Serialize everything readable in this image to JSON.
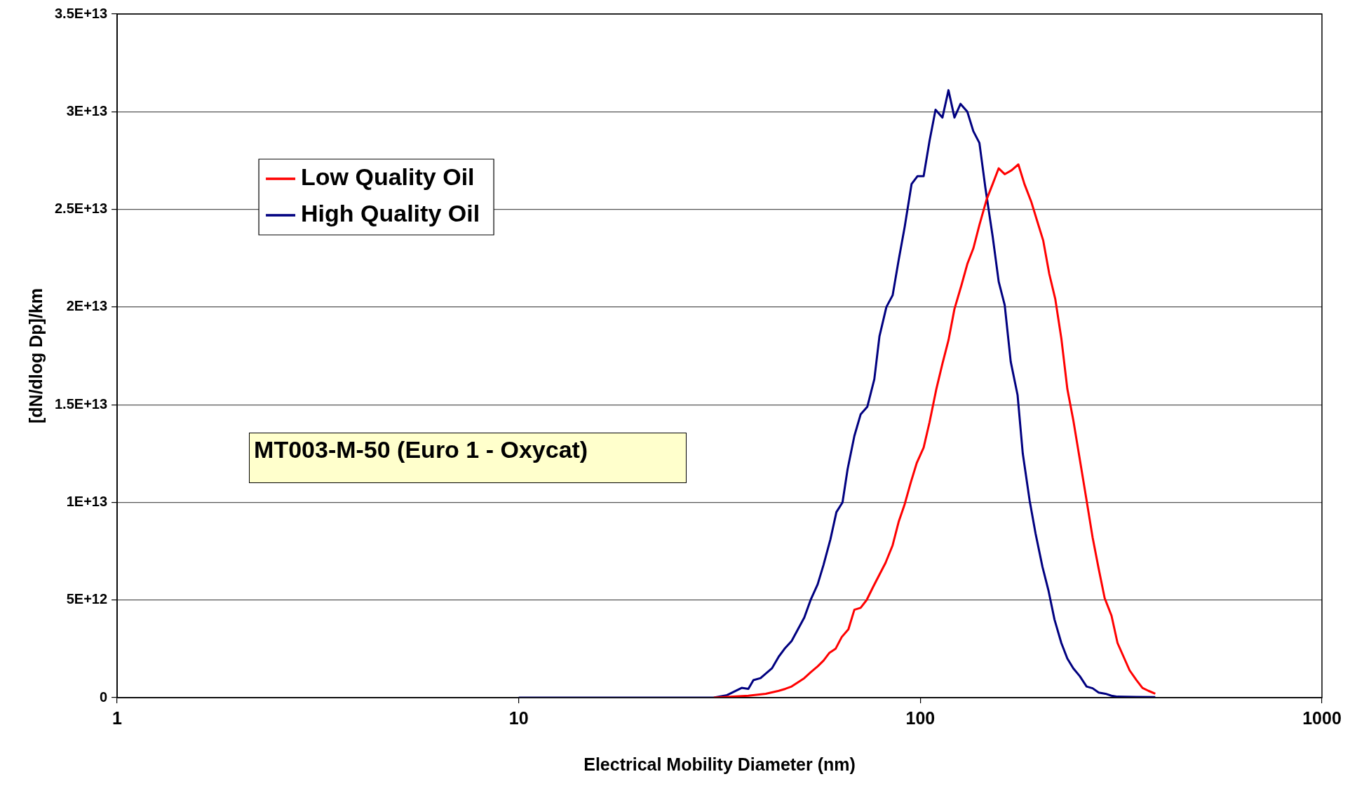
{
  "chart_data": {
    "type": "line",
    "xlabel": "Electrical Mobility Diameter (nm)",
    "ylabel": "[dN/dlog Dp]/km",
    "annotations": [
      "MT003-M-50 (Euro 1 - Oxycat)"
    ],
    "log": "x",
    "xlim": [
      1,
      1000
    ],
    "xticks": [
      1,
      10,
      100,
      1000
    ],
    "ylim": [
      0,
      35000000000000.0
    ],
    "yticks": [
      {
        "value": 0,
        "label": "0"
      },
      {
        "value": 5000000000000.0,
        "label": "5E+12"
      },
      {
        "value": 10000000000000.0,
        "label": "1E+13"
      },
      {
        "value": 15000000000000.0,
        "label": "1.5E+13"
      },
      {
        "value": 20000000000000.0,
        "label": "2E+13"
      },
      {
        "value": 25000000000000.0,
        "label": "2.5E+13"
      },
      {
        "value": 30000000000000.0,
        "label": "3E+13"
      },
      {
        "value": 35000000000000.0,
        "label": "3.5E+13"
      }
    ],
    "grid": "y",
    "legend": "top left",
    "marker": "none",
    "line_style": "solid",
    "series": [
      {
        "name": "Low Quality Oil",
        "color": "#ff0000",
        "x": [
          30.6,
          37.3,
          41.2,
          44.4,
          46.1,
          47.8,
          49.7,
          51.4,
          53.3,
          55.5,
          57.4,
          59.4,
          61.5,
          63.7,
          66.2,
          68.5,
          71.0,
          73.5,
          76.4,
          79.1,
          81.9,
          85.3,
          88.3,
          91.4,
          94.6,
          97.9,
          101.9,
          105.4,
          109.6,
          113.5,
          117.5,
          121.6,
          126.5,
          130.9,
          135.5,
          140.3,
          146.2,
          151.4,
          156.7,
          162.2,
          168.7,
          175.4,
          181.6,
          188.8,
          195.4,
          202.3,
          209.4,
          216.8,
          224.4,
          232.3,
          240.4,
          249.5,
          259.4,
          268.5,
          278.0,
          287.7,
          299.2,
          309.7,
          320.6,
          331.9,
          345.1,
          357.3,
          369.8,
          384.6
        ],
        "values": [
          0,
          100000000000.0,
          200000000000.0,
          350000000000.0,
          450000000000.0,
          570000000000.0,
          800000000000.0,
          1000000000000.0,
          1300000000000.0,
          1600000000000.0,
          1900000000000.0,
          2300000000000.0,
          2500000000000.0,
          3100000000000.0,
          3500000000000.0,
          4500000000000.0,
          4600000000000.0,
          5000000000000.0,
          5700000000000.0,
          6300000000000.0,
          6900000000000.0,
          7800000000000.0,
          9000000000000.0,
          9900000000000.0,
          11000000000000.0,
          12000000000000.0,
          12800000000000.0,
          14100000000000.0,
          15800000000000.0,
          17100000000000.0,
          18300000000000.0,
          19900000000000.0,
          21100000000000.0,
          22200000000000.0,
          23000000000000.0,
          24200000000000.0,
          25500000000000.0,
          26300000000000.0,
          27100000000000.0,
          26800000000000.0,
          27000000000000.0,
          27300000000000.0,
          26300000000000.0,
          25400000000000.0,
          24400000000000.0,
          23400000000000.0,
          21700000000000.0,
          20400000000000.0,
          18400000000000.0,
          15800000000000.0,
          14200000000000.0,
          12200000000000.0,
          10100000000000.0,
          8200000000000.0,
          6600000000000.0,
          5100000000000.0,
          4200000000000.0,
          2800000000000.0,
          2100000000000.0,
          1400000000000.0,
          900000000000.0,
          500000000000.0,
          350000000000.0,
          200000000000.0
        ]
      },
      {
        "name": "High Quality Oil",
        "color": "#000080",
        "x": [
          10,
          20,
          30.6,
          33.0,
          35.9,
          37.3,
          38.4,
          40.0,
          42.7,
          44.4,
          45.9,
          47.8,
          51.4,
          53.3,
          55.5,
          57.4,
          59.7,
          61.8,
          64.0,
          65.9,
          68.5,
          71.0,
          73.8,
          76.8,
          79.1,
          82.3,
          85.3,
          88.3,
          91.4,
          95.1,
          98.4,
          101.9,
          105.4,
          109.1,
          113.5,
          117.5,
          121.6,
          125.9,
          130.9,
          135.5,
          140.3,
          145.2,
          151.4,
          156.7,
          162.2,
          167.9,
          174.6,
          179.9,
          187.1,
          193.6,
          201.4,
          208.4,
          215.8,
          224.4,
          232.3,
          240.4,
          249.5,
          259.4,
          268.5,
          278.0,
          289.1,
          299.2,
          309.7,
          345.1,
          384.6
        ],
        "values": [
          0,
          0,
          0,
          130000000000.0,
          500000000000.0,
          450000000000.0,
          900000000000.0,
          1000000000000.0,
          1500000000000.0,
          2100000000000.0,
          2500000000000.0,
          2900000000000.0,
          4100000000000.0,
          5000000000000.0,
          5800000000000.0,
          6800000000000.0,
          8100000000000.0,
          9500000000000.0,
          10000000000000.0,
          11700000000000.0,
          13400000000000.0,
          14500000000000.0,
          14900000000000.0,
          16300000000000.0,
          18500000000000.0,
          20000000000000.0,
          20600000000000.0,
          22400000000000.0,
          24100000000000.0,
          26300000000000.0,
          26700000000000.0,
          26700000000000.0,
          28500000000000.0,
          30100000000000.0,
          29700000000000.0,
          31100000000000.0,
          29700000000000.0,
          30400000000000.0,
          30000000000000.0,
          29000000000000.0,
          28400000000000.0,
          26100000000000.0,
          23600000000000.0,
          21300000000000.0,
          20100000000000.0,
          17200000000000.0,
          15500000000000.0,
          12500000000000.0,
          10100000000000.0,
          8400000000000.0,
          6700000000000.0,
          5500000000000.0,
          4000000000000.0,
          2800000000000.0,
          2000000000000.0,
          1500000000000.0,
          1100000000000.0,
          570000000000.0,
          480000000000.0,
          260000000000.0,
          200000000000.0,
          100000000000.0,
          50000000000.0,
          40000000000.0,
          30000000000.0
        ]
      }
    ]
  }
}
